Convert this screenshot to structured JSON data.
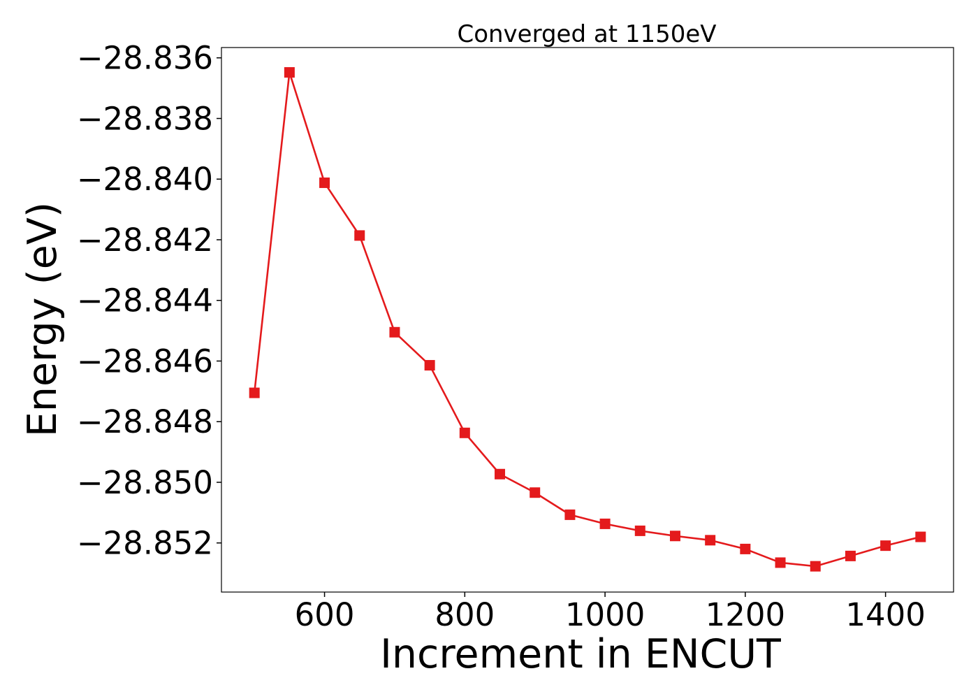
{
  "chart_data": {
    "type": "line",
    "title": "Converged at 1150eV",
    "xlabel": "Increment in ENCUT",
    "ylabel": "Energy (eV)",
    "xlim": [
      453,
      1497
    ],
    "ylim": [
      -28.85362,
      -28.83566
    ],
    "x_ticks": [
      600,
      800,
      1000,
      1200,
      1400
    ],
    "x_tick_labels": [
      "600",
      "800",
      "1000",
      "1200",
      "1400"
    ],
    "y_ticks": [
      -28.836,
      -28.838,
      -28.84,
      -28.842,
      -28.844,
      -28.846,
      -28.848,
      -28.85,
      -28.852
    ],
    "y_tick_labels": [
      "−28.836",
      "−28.838",
      "−28.840",
      "−28.842",
      "−28.844",
      "−28.846",
      "−28.848",
      "−28.850",
      "−28.852"
    ],
    "grid": false,
    "series": [
      {
        "color": "#e41a1c",
        "marker": "square",
        "x": [
          500,
          550,
          600,
          650,
          700,
          750,
          800,
          850,
          900,
          950,
          1000,
          1050,
          1100,
          1150,
          1200,
          1250,
          1300,
          1350,
          1400,
          1450
        ],
        "y": [
          -28.84705,
          -28.83648,
          -28.84012,
          -28.84186,
          -28.84505,
          -28.84614,
          -28.84837,
          -28.84973,
          -28.85034,
          -28.85107,
          -28.85137,
          -28.8516,
          -28.85177,
          -28.85191,
          -28.8522,
          -28.85265,
          -28.85277,
          -28.85243,
          -28.85209,
          -28.8518
        ]
      }
    ]
  }
}
